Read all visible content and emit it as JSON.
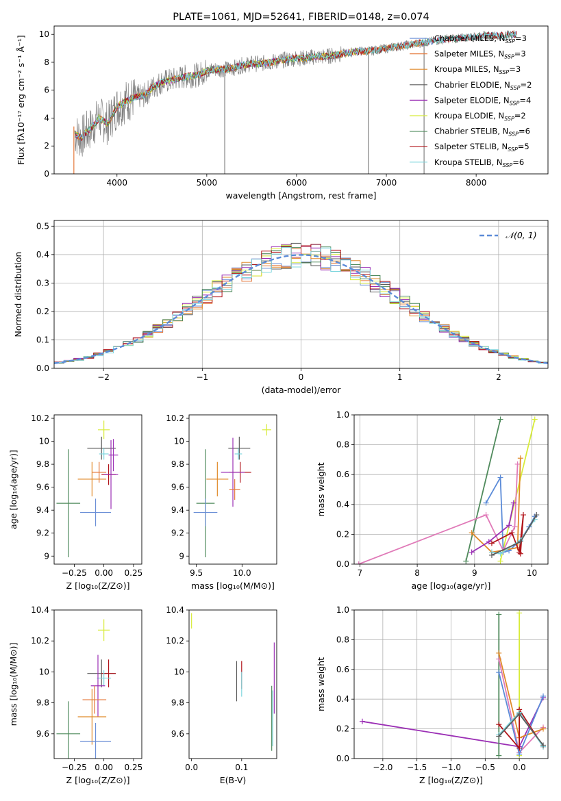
{
  "colors": {
    "Chabrier MILES": "#6b8fd6",
    "Salpeter MILES": "#e57a3c",
    "Kroupa MILES": "#e08a2a",
    "Chabrier ELODIE": "#5a5a5a",
    "Salpeter ELODIE": "#9b2fb5",
    "Kroupa ELODIE": "#d8ec3a",
    "Chabrier STELIB": "#4f8a5c",
    "Salpeter STELIB": "#b01218",
    "Kroupa STELIB": "#7fd6de",
    "observed": "#808080",
    "pink": "#e07ab8",
    "blue": "#5b8bd8",
    "gaussian": "#5b8bd8"
  },
  "chart_data": [
    {
      "id": "spectrum",
      "type": "line",
      "title": "PLATE=1061, MJD=52641, FIBERID=0148, z=0.074",
      "xlabel": "wavelength [Angstrom, rest frame]",
      "ylabel": "Flux [fλ10⁻¹⁷ erg cm⁻² s⁻¹ Å⁻¹]",
      "xlim": [
        3300,
        8800
      ],
      "ylim": [
        0,
        10.6
      ],
      "xticks": [
        4000,
        5000,
        6000,
        7000,
        8000
      ],
      "yticks": [
        0,
        2,
        4,
        6,
        8,
        10
      ],
      "x": [
        3500,
        3600,
        3700,
        3800,
        3900,
        4000,
        4100,
        4200,
        4300,
        4400,
        4500,
        4600,
        4700,
        4800,
        4900,
        5000,
        5100,
        5200,
        5300,
        5400,
        5500,
        5600,
        5700,
        5800,
        5900,
        6000,
        6100,
        6200,
        6300,
        6400,
        6500,
        6600,
        6700,
        6800,
        6900,
        7000,
        7100,
        7200,
        7300,
        7400,
        7500,
        7600,
        7700,
        7800,
        7900,
        8000,
        8100,
        8200,
        8300,
        8400
      ],
      "y": [
        3.0,
        2.6,
        3.2,
        4.0,
        3.6,
        4.8,
        5.2,
        5.5,
        5.6,
        6.2,
        6.6,
        6.7,
        6.9,
        7.0,
        7.1,
        7.4,
        7.5,
        7.5,
        7.6,
        7.8,
        7.9,
        7.9,
        8.0,
        8.1,
        8.2,
        8.3,
        8.3,
        8.4,
        8.4,
        8.5,
        8.6,
        8.7,
        8.8,
        8.8,
        8.9,
        9.0,
        9.1,
        9.2,
        9.3,
        9.4,
        9.5,
        9.6,
        9.7,
        9.7,
        9.8,
        9.8,
        9.9,
        9.9,
        9.9,
        10.0
      ],
      "series": [
        {
          "name": "Chabrier MILES, N_SSP=3",
          "key": "Chabrier MILES",
          "xmax": 8450
        },
        {
          "name": "Salpeter MILES, N_SSP=3",
          "key": "Salpeter MILES",
          "xmax": 7400
        },
        {
          "name": "Kroupa MILES, N_SSP=3",
          "key": "Kroupa MILES",
          "xmax": 7400
        },
        {
          "name": "Chabrier ELODIE, N_SSP=2",
          "key": "Chabrier ELODIE",
          "xmax": 6700
        },
        {
          "name": "Salpeter ELODIE, N_SSP=4",
          "key": "Salpeter ELODIE",
          "xmax": 6700
        },
        {
          "name": "Kroupa ELODIE, N_SSP=2",
          "key": "Kroupa ELODIE",
          "xmax": 6700
        },
        {
          "name": "Chabrier STELIB, N_SSP=6",
          "key": "Chabrier STELIB",
          "xmax": 8450
        },
        {
          "name": "Salpeter STELIB, N_SSP=5",
          "key": "Salpeter STELIB",
          "xmax": 8450
        },
        {
          "name": "Kroupa STELIB, N_SSP=6",
          "key": "Kroupa STELIB",
          "xmax": 8450
        }
      ],
      "legend": "upper right"
    },
    {
      "id": "hist",
      "type": "histogram",
      "xlabel": "(data-model)/error",
      "ylabel": "Normed distribution",
      "xlim": [
        -2.5,
        2.5
      ],
      "ylim": [
        0,
        0.52
      ],
      "xticks": [
        -2,
        -1,
        0,
        1,
        2
      ],
      "xticklabels": [
        "−2",
        "−1",
        "0",
        "1",
        "2"
      ],
      "yticks": [
        0,
        0.1,
        0.2,
        0.3,
        0.4,
        0.5
      ],
      "yticklabels": [
        "0.0",
        "0.1",
        "0.2",
        "0.3",
        "0.4",
        "0.5"
      ],
      "bin_width": 0.1,
      "legend_label": "𝒩(0, 1)"
    },
    {
      "id": "age_Z",
      "type": "errorbar",
      "xlabel": "Z [log₁₀(Z/Z⊙)]",
      "ylabel": "age  [log₁₀(age/yr)]",
      "xlim": [
        -0.42,
        0.32
      ],
      "ylim": [
        8.93,
        10.23
      ],
      "xticks": [
        -0.25,
        0,
        0.25
      ],
      "xticklabels": [
        "−0.25",
        "0.00",
        "0.25"
      ],
      "yticks": [
        9.0,
        9.2,
        9.4,
        9.6,
        9.8,
        10.0,
        10.2
      ],
      "points": [
        {
          "key": "Kroupa ELODIE",
          "x": 0.0,
          "y": 10.1,
          "xe": 0.05,
          "ye": 0.08
        },
        {
          "key": "Chabrier ELODIE",
          "x": -0.02,
          "y": 9.94,
          "xe": 0.12,
          "ye": 0.1
        },
        {
          "key": "Salpeter ELODIE",
          "x": 0.08,
          "y": 9.88,
          "xe": 0.04,
          "ye": 0.14
        },
        {
          "key": "Kroupa STELIB",
          "x": 0.0,
          "y": 9.89,
          "xe": 0.04,
          "ye": 0.05
        },
        {
          "key": "Salpeter MILES",
          "x": -0.04,
          "y": 9.73,
          "xe": 0.06,
          "ye": 0.09
        },
        {
          "key": "Salpeter STELIB",
          "x": 0.04,
          "y": 9.71,
          "xe": 0.06,
          "ye": 0.09
        },
        {
          "key": "Kroupa MILES",
          "x": -0.1,
          "y": 9.67,
          "xe": 0.12,
          "ye": 0.15
        },
        {
          "key": "Chabrier STELIB",
          "x": -0.3,
          "y": 9.46,
          "xe": 0.1,
          "ye": 0.47
        },
        {
          "key": "Chabrier MILES",
          "x": -0.07,
          "y": 9.38,
          "xe": 0.13,
          "ye": 0.12
        },
        {
          "key": "Salpeter ELODIE",
          "x": 0.06,
          "y": 9.71,
          "xe": 0.06,
          "ye": 0.3
        }
      ]
    },
    {
      "id": "age_mass",
      "type": "errorbar",
      "xlabel": "mass [log₁₀(M/M⊙)]",
      "ylabel": "",
      "xlim": [
        9.42,
        10.38
      ],
      "ylim": [
        8.93,
        10.23
      ],
      "xticks": [
        9.5,
        10.0
      ],
      "xticklabels": [
        "9.5",
        "10.0"
      ],
      "yticks": [
        9.0,
        9.2,
        9.4,
        9.6,
        9.8,
        10.0,
        10.2
      ],
      "points": [
        {
          "key": "Kroupa ELODIE",
          "x": 10.27,
          "y": 10.1,
          "xe": 0.05,
          "ye": 0.05
        },
        {
          "key": "Chabrier ELODIE",
          "x": 9.97,
          "y": 9.94,
          "xe": 0.12,
          "ye": 0.1
        },
        {
          "key": "Kroupa STELIB",
          "x": 9.96,
          "y": 9.89,
          "xe": 0.04,
          "ye": 0.05
        },
        {
          "key": "Salpeter STELIB",
          "x": 9.98,
          "y": 9.73,
          "xe": 0.12,
          "ye": 0.09
        },
        {
          "key": "Salpeter ELODIE",
          "x": 9.9,
          "y": 9.73,
          "xe": 0.13,
          "ye": 0.3
        },
        {
          "key": "Kroupa MILES",
          "x": 9.73,
          "y": 9.67,
          "xe": 0.12,
          "ye": 0.15
        },
        {
          "key": "Salpeter MILES",
          "x": 9.92,
          "y": 9.58,
          "xe": 0.06,
          "ye": 0.09
        },
        {
          "key": "Chabrier STELIB",
          "x": 9.6,
          "y": 9.46,
          "xe": 0.1,
          "ye": 0.47
        },
        {
          "key": "Chabrier MILES",
          "x": 9.6,
          "y": 9.38,
          "xe": 0.13,
          "ye": 0.12
        }
      ]
    },
    {
      "id": "mw_age",
      "type": "line",
      "xlabel": "age  [log₁₀(age/yr)]",
      "ylabel": "mass weight",
      "xlim": [
        6.9,
        10.28
      ],
      "ylim": [
        0,
        1
      ],
      "xticks": [
        7,
        8,
        9,
        10
      ],
      "yticks": [
        0,
        0.2,
        0.4,
        0.6,
        0.8,
        1.0
      ],
      "yticklabels": [
        "0.0",
        "0.2",
        "0.4",
        "0.6",
        "0.8",
        "1.0"
      ],
      "series": [
        {
          "key": "Chabrier STELIB",
          "x": [
            8.85,
            9.45
          ],
          "y": [
            0.02,
            0.97
          ]
        },
        {
          "key": "Kroupa ELODIE",
          "x": [
            9.45,
            10.05
          ],
          "y": [
            0.02,
            0.97
          ]
        },
        {
          "key": "blue",
          "x": [
            9.2,
            9.45,
            9.5,
            9.6,
            9.8,
            9.95,
            10.05
          ],
          "y": [
            0.41,
            0.58,
            0.08,
            0.09,
            0.16,
            0.25,
            0.32
          ]
        },
        {
          "key": "pink",
          "x": [
            6.98,
            9.2,
            9.5,
            9.7,
            9.75
          ],
          "y": [
            0.0,
            0.33,
            0.09,
            0.25,
            0.67
          ]
        },
        {
          "key": "Kroupa MILES",
          "x": [
            8.95,
            9.3,
            9.75,
            9.8
          ],
          "y": [
            0.21,
            0.08,
            0.11,
            0.71
          ]
        },
        {
          "key": "Salpeter ELODIE",
          "x": [
            8.95,
            9.25,
            9.6,
            9.68
          ],
          "y": [
            0.08,
            0.15,
            0.26,
            0.41
          ]
        },
        {
          "key": "Salpeter STELIB",
          "x": [
            9.3,
            9.65,
            9.78,
            9.85,
            9.8
          ],
          "y": [
            0.14,
            0.21,
            0.08,
            0.33,
            0.07
          ]
        },
        {
          "key": "Kroupa STELIB",
          "x": [
            9.3,
            9.45,
            9.8,
            10.05
          ],
          "y": [
            0.08,
            0.07,
            0.16,
            0.3
          ]
        },
        {
          "key": "Chabrier ELODIE",
          "x": [
            9.3,
            9.8,
            10.08
          ],
          "y": [
            0.06,
            0.15,
            0.33
          ]
        }
      ]
    },
    {
      "id": "mass_Z",
      "type": "errorbar",
      "xlabel": "Z [log₁₀(Z/Z⊙)]",
      "ylabel": "mass [log₁₀(M/M⊙)]",
      "xlim": [
        -0.42,
        0.32
      ],
      "ylim": [
        9.44,
        10.4
      ],
      "xticks": [
        -0.25,
        0,
        0.25
      ],
      "xticklabels": [
        "−0.25",
        "0.00",
        "0.25"
      ],
      "yticks": [
        9.6,
        9.8,
        10.0,
        10.2,
        10.4
      ],
      "points": [
        {
          "key": "Kroupa ELODIE",
          "x": 0.0,
          "y": 10.27,
          "xe": 0.05,
          "ye": 0.07
        },
        {
          "key": "Chabrier ELODIE",
          "x": -0.02,
          "y": 9.99,
          "xe": 0.12,
          "ye": 0.09
        },
        {
          "key": "Salpeter STELIB",
          "x": 0.04,
          "y": 9.99,
          "xe": 0.06,
          "ye": 0.09
        },
        {
          "key": "Kroupa STELIB",
          "x": 0.0,
          "y": 9.96,
          "xe": 0.06,
          "ye": 0.05
        },
        {
          "key": "Salpeter ELODIE",
          "x": -0.05,
          "y": 9.91,
          "xe": 0.06,
          "ye": 0.2
        },
        {
          "key": "Salpeter MILES",
          "x": -0.08,
          "y": 9.82,
          "xe": 0.1,
          "ye": 0.09
        },
        {
          "key": "Kroupa MILES",
          "x": -0.1,
          "y": 9.71,
          "xe": 0.12,
          "ye": 0.18
        },
        {
          "key": "Chabrier STELIB",
          "x": -0.3,
          "y": 9.6,
          "xe": 0.1,
          "ye": 0.21
        },
        {
          "key": "Chabrier MILES",
          "x": -0.07,
          "y": 9.55,
          "xe": 0.13,
          "ye": 0.12
        }
      ]
    },
    {
      "id": "mass_ebv",
      "type": "errorbar",
      "xlabel": "E(B-V)",
      "ylabel": "",
      "xlim": [
        -0.005,
        0.17
      ],
      "ylim": [
        9.44,
        10.4
      ],
      "xticks": [
        0.0,
        0.1
      ],
      "xticklabels": [
        "0.0",
        "0.1"
      ],
      "yticks": [
        9.6,
        9.8,
        10.0,
        10.2,
        10.4
      ],
      "points": [
        {
          "key": "Kroupa ELODIE",
          "x": 0.0,
          "y": 10.33,
          "xe": 0,
          "ye": 0.05
        },
        {
          "key": "Chabrier ELODIE",
          "x": 0.09,
          "y": 9.94,
          "xe": 0,
          "ye": 0.13
        },
        {
          "key": "Salpeter STELIB",
          "x": 0.1,
          "y": 9.98,
          "xe": 0,
          "ye": 0.09
        },
        {
          "key": "Kroupa STELIB",
          "x": 0.1,
          "y": 9.92,
          "xe": 0,
          "ye": 0.08
        },
        {
          "key": "Salpeter ELODIE",
          "x": 0.165,
          "y": 9.96,
          "xe": 0,
          "ye": 0.23
        },
        {
          "key": "Chabrier STELIB",
          "x": 0.16,
          "y": 9.7,
          "xe": 0,
          "ye": 0.21
        },
        {
          "key": "Kroupa STELIB",
          "x": 0.162,
          "y": 9.7,
          "xe": 0,
          "ye": 0.18
        }
      ]
    },
    {
      "id": "mw_Z",
      "type": "line",
      "xlabel": "Z [log₁₀(Z/Z⊙)]",
      "ylabel": "mass weight",
      "xlim": [
        -2.42,
        0.42
      ],
      "ylim": [
        0,
        1
      ],
      "xticks": [
        -2.0,
        -1.5,
        -1.0,
        -0.5,
        0.0
      ],
      "xticklabels": [
        "−2.0",
        "−1.5",
        "−1.0",
        "−0.5",
        "0.0"
      ],
      "yticks": [
        0,
        0.2,
        0.4,
        0.6,
        0.8,
        1.0
      ],
      "yticklabels": [
        "0.0",
        "0.2",
        "0.4",
        "0.6",
        "0.8",
        "1.0"
      ],
      "series": [
        {
          "key": "Salpeter ELODIE",
          "x": [
            -2.3,
            0.0,
            0.35
          ],
          "y": [
            0.25,
            0.08,
            0.41
          ]
        },
        {
          "key": "Chabrier STELIB",
          "x": [
            -0.3,
            -0.3
          ],
          "y": [
            0.02,
            0.97
          ]
        },
        {
          "key": "Kroupa ELODIE",
          "x": [
            0.0,
            0.0
          ],
          "y": [
            0.02,
            0.98
          ]
        },
        {
          "key": "pink",
          "x": [
            -0.3,
            0.0,
            0.35
          ],
          "y": [
            0.67,
            0.04,
            0.21
          ]
        },
        {
          "key": "Kroupa MILES",
          "x": [
            -0.3,
            0.0,
            0.35
          ],
          "y": [
            0.71,
            0.14,
            0.2
          ]
        },
        {
          "key": "blue",
          "x": [
            -0.3,
            0.0,
            0.35
          ],
          "y": [
            0.58,
            0.03,
            0.42
          ]
        },
        {
          "key": "Salpeter STELIB",
          "x": [
            -0.3,
            0.0,
            0.0,
            0.35
          ],
          "y": [
            0.23,
            0.07,
            0.33,
            0.08
          ]
        },
        {
          "key": "Kroupa STELIB",
          "x": [
            -0.3,
            0.0,
            0.35
          ],
          "y": [
            0.16,
            0.31,
            0.08
          ]
        },
        {
          "key": "Chabrier ELODIE",
          "x": [
            -0.3,
            0.0,
            0.35
          ],
          "y": [
            0.15,
            0.3,
            0.09
          ]
        }
      ]
    }
  ]
}
